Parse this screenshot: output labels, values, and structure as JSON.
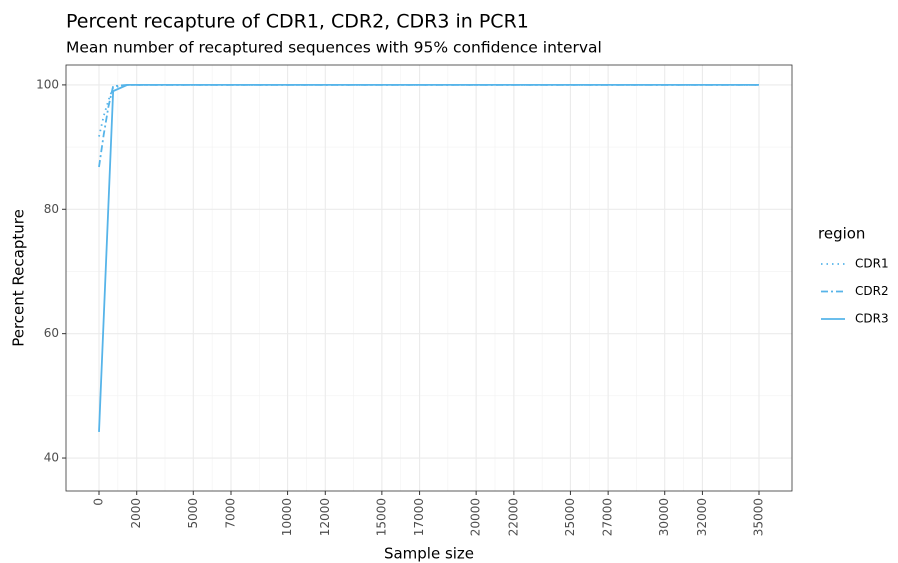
{
  "chart_data": {
    "type": "line",
    "title": "Percent recapture of CDR1, CDR2, CDR3 in PCR1",
    "subtitle": "Mean number of recaptured sequences with 95% confidence interval",
    "x_label": "Sample size",
    "y_label": "Percent Recapture",
    "legend_title": "region",
    "series": [
      {
        "name": "CDR1",
        "color": "#56B4E9",
        "linetype": "dotted",
        "x": [
          0,
          250,
          500,
          750,
          1500,
          35000
        ],
        "values": [
          91.7,
          95.0,
          97.5,
          99.6,
          100,
          100
        ]
      },
      {
        "name": "CDR2",
        "color": "#56B4E9",
        "linetype": "dashed",
        "x": [
          0,
          250,
          500,
          750,
          1500,
          35000
        ],
        "values": [
          86.8,
          92.0,
          96.5,
          99.8,
          100,
          100
        ]
      },
      {
        "name": "CDR3",
        "color": "#56B4E9",
        "linetype": "solid",
        "x": [
          0,
          750,
          1500,
          35000
        ],
        "values": [
          44.2,
          99.0,
          100,
          100
        ]
      }
    ],
    "xlim": [
      -1750,
      36750
    ],
    "ylim": [
      34.7,
      103.2
    ],
    "xticks": [
      0,
      2000,
      5000,
      7000,
      10000,
      12000,
      15000,
      17000,
      20000,
      22000,
      25000,
      27000,
      30000,
      32000,
      35000
    ],
    "yticks": [
      40,
      60,
      80,
      100
    ],
    "grid": true
  }
}
